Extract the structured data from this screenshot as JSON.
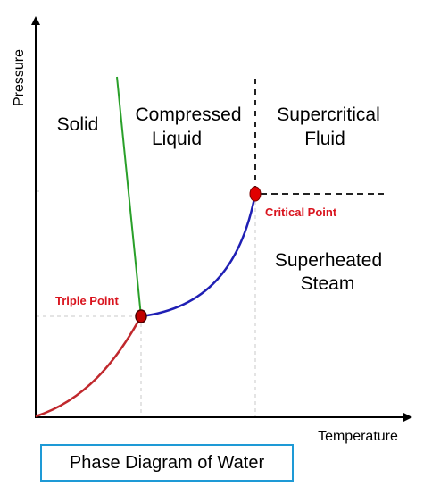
{
  "title": "Phase Diagram of Water",
  "axes": {
    "x_label": "Temperature",
    "y_label": "Pressure"
  },
  "regions": {
    "solid": [
      "Solid"
    ],
    "compressed_liquid": [
      "Compressed",
      "Liquid"
    ],
    "supercritical_fluid": [
      "Supercritical",
      "Fluid"
    ],
    "superheated_steam": [
      "Superheated",
      "Steam"
    ]
  },
  "points": {
    "triple_point": "Triple Point",
    "critical_point": "Critical Point"
  },
  "colors": {
    "sublimation_curve": "#c0282d",
    "fusion_curve": "#2aa02a",
    "vaporization_curve": "#1f1fb4",
    "point_fill": "#c00000",
    "point_label": "#d9141e",
    "caption_border": "#1e9ad6",
    "guide_line": "#c8c8c8",
    "dashed_boundary": "#222222"
  }
}
